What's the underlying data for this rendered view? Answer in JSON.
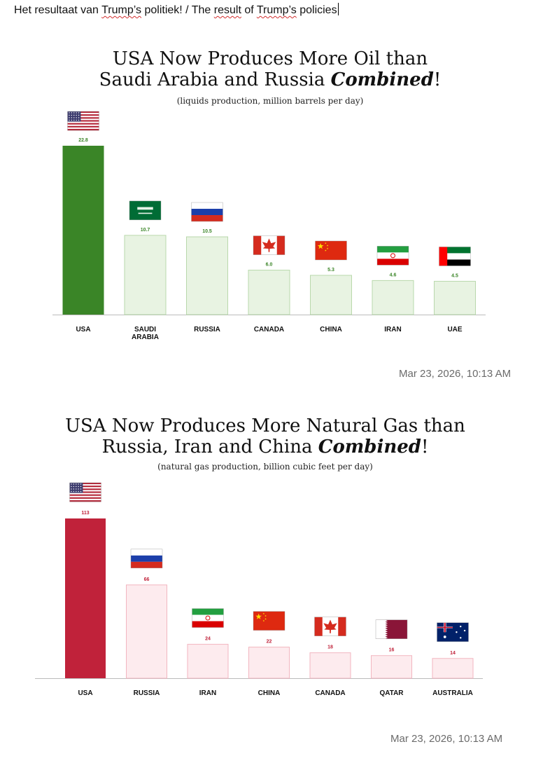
{
  "header": {
    "part1": "Het resultaat van ",
    "w1": "Trump’s",
    "part2": " politiek! / The ",
    "w2": "result",
    "part3": " of ",
    "w3": "Trump’s",
    "part4": " policies"
  },
  "colors": {
    "oil_highlight": "#3a8527",
    "oil_light": "#e8f3e2",
    "oil_light_border": "#b9d8ac",
    "oil_value_text": "#3a8527",
    "gas_highlight": "#c0223a",
    "gas_light": "#fdebee",
    "gas_light_border": "#f2b6c0",
    "gas_value_text": "#c0223a"
  },
  "chart_data": [
    {
      "type": "bar",
      "title_line1": "USA Now Produces More Oil than",
      "title_line2_plain": "Saudi Arabia and Russia ",
      "title_line2_italic": "Combined",
      "title_line2_end": "!",
      "subtitle": "(liquids production, million barrels per day)",
      "categories": [
        "USA",
        "SAUDI ARABIA",
        "RUSSIA",
        "CANADA",
        "CHINA",
        "IRAN",
        "UAE"
      ],
      "category_lines": [
        [
          "USA"
        ],
        [
          "SAUDI",
          "ARABIA"
        ],
        [
          "RUSSIA"
        ],
        [
          "CANADA"
        ],
        [
          "CHINA"
        ],
        [
          "IRAN"
        ],
        [
          "UAE"
        ]
      ],
      "values": [
        22.8,
        10.7,
        10.5,
        6.0,
        5.3,
        4.6,
        4.5
      ],
      "value_labels": [
        "22.8",
        "10.7",
        "10.5",
        "6.0",
        "5.3",
        "4.6",
        "4.5"
      ],
      "flags": [
        "usa-flag",
        "saudi-arabia-flag",
        "russia-flag",
        "canada-flag",
        "china-flag",
        "iran-flag",
        "uae-flag"
      ],
      "highlight_index": 0,
      "timestamp": "Mar 23, 2026, 10:13 AM"
    },
    {
      "type": "bar",
      "title_line1": "USA Now Produces More Natural Gas than",
      "title_line2_plain": "Russia, Iran and China ",
      "title_line2_italic": "Combined",
      "title_line2_end": "!",
      "subtitle": "(natural gas production, billion cubic feet per day)",
      "categories": [
        "USA",
        "RUSSIA",
        "IRAN",
        "CHINA",
        "CANADA",
        "QATAR",
        "AUSTRALIA"
      ],
      "category_lines": [
        [
          "USA"
        ],
        [
          "RUSSIA"
        ],
        [
          "IRAN"
        ],
        [
          "CHINA"
        ],
        [
          "CANADA"
        ],
        [
          "QATAR"
        ],
        [
          "AUSTRALIA"
        ]
      ],
      "values": [
        113,
        66,
        24,
        22,
        18,
        16,
        14
      ],
      "value_labels": [
        "113",
        "66",
        "24",
        "22",
        "18",
        "16",
        "14"
      ],
      "flags": [
        "usa-flag",
        "russia-flag",
        "iran-flag",
        "china-flag",
        "canada-flag",
        "qatar-flag",
        "australia-flag"
      ],
      "highlight_index": 0,
      "timestamp": "Mar 23, 2026, 10:13 AM"
    }
  ]
}
